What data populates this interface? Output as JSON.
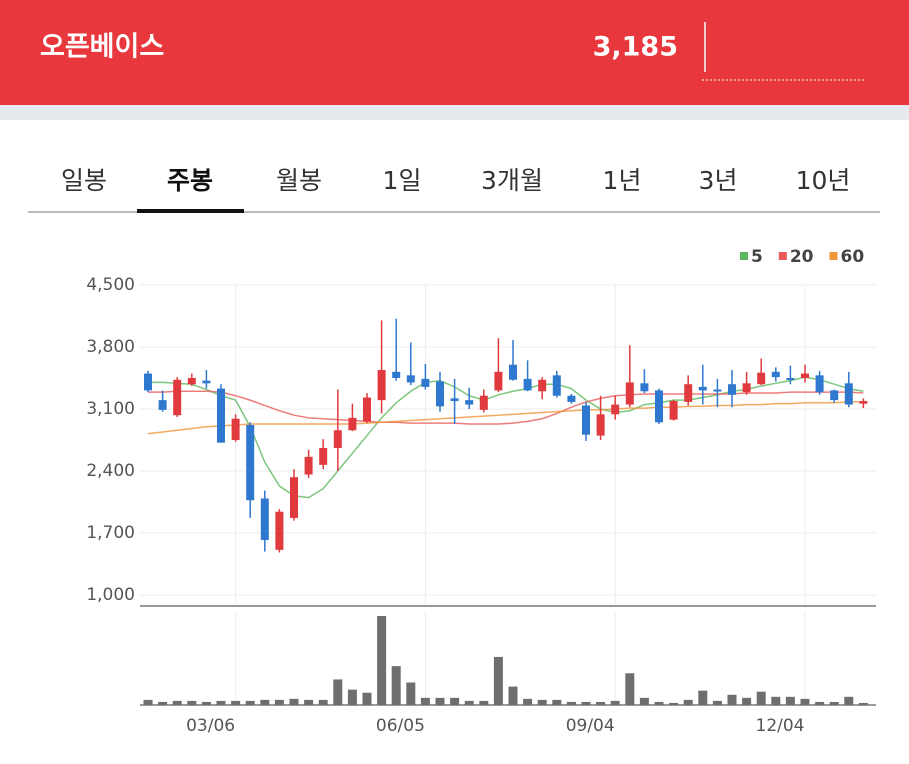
{
  "header": {
    "title": "오픈베이스",
    "price": "3,185"
  },
  "tabs": {
    "items": [
      "일봉",
      "주봉",
      "월봉",
      "1일",
      "3개월",
      "1년",
      "3년",
      "10년"
    ],
    "active": 1
  },
  "chart_data": {
    "type": "candlestick",
    "up_color": "#e03a3e",
    "down_color": "#2f78d0",
    "volume_color": "#6e6e6e",
    "categories": [
      null,
      null,
      null,
      null,
      null,
      null,
      "03/06",
      null,
      null,
      null,
      null,
      null,
      null,
      null,
      null,
      null,
      null,
      null,
      null,
      "06/05",
      null,
      null,
      null,
      null,
      null,
      null,
      null,
      null,
      null,
      null,
      null,
      null,
      "09/04",
      null,
      null,
      null,
      null,
      null,
      null,
      null,
      null,
      null,
      null,
      null,
      null,
      "12/04",
      null,
      null,
      null,
      null
    ],
    "open": [
      3500,
      3200,
      3030,
      3380,
      3420,
      3330,
      2750,
      2920,
      2090,
      1510,
      1870,
      2360,
      2470,
      2660,
      2860,
      2960,
      3200,
      3520,
      3480,
      3440,
      3410,
      3220,
      3200,
      3090,
      3310,
      3600,
      3440,
      3300,
      3480,
      3250,
      3140,
      2800,
      3040,
      3150,
      3390,
      3310,
      2980,
      3180,
      3350,
      3320,
      3380,
      3290,
      3380,
      3520,
      3450,
      3450,
      3480,
      3310,
      3390,
      3160
    ],
    "high": [
      3530,
      3310,
      3460,
      3500,
      3540,
      3380,
      3040,
      2950,
      2180,
      1970,
      2420,
      2640,
      2760,
      3320,
      3160,
      3280,
      4100,
      4120,
      3850,
      3610,
      3520,
      3440,
      3340,
      3320,
      3900,
      3880,
      3650,
      3460,
      3530,
      3270,
      3180,
      3250,
      3250,
      3820,
      3550,
      3330,
      3200,
      3480,
      3600,
      3440,
      3540,
      3520,
      3670,
      3570,
      3590,
      3600,
      3530,
      3320,
      3520,
      3220
    ],
    "low": [
      3290,
      3070,
      3010,
      3360,
      3330,
      2720,
      2730,
      1870,
      1490,
      1480,
      1840,
      2320,
      2420,
      2400,
      2850,
      2940,
      3050,
      3420,
      3370,
      3320,
      3070,
      2930,
      3100,
      3060,
      3290,
      3420,
      3300,
      3210,
      3230,
      3160,
      2740,
      2750,
      2980,
      3120,
      3280,
      2930,
      2970,
      3140,
      3150,
      3120,
      3120,
      3260,
      3370,
      3410,
      3380,
      3400,
      3260,
      3170,
      3120,
      3110
    ],
    "close": [
      3310,
      3090,
      3430,
      3450,
      3390,
      2720,
      2990,
      2070,
      1620,
      1940,
      2330,
      2560,
      2660,
      2860,
      3000,
      3230,
      3540,
      3450,
      3400,
      3350,
      3130,
      3190,
      3150,
      3250,
      3520,
      3430,
      3310,
      3430,
      3250,
      3180,
      2810,
      3040,
      3150,
      3400,
      3300,
      2950,
      3190,
      3380,
      3310,
      3300,
      3260,
      3390,
      3510,
      3460,
      3430,
      3500,
      3290,
      3200,
      3150,
      3190
    ],
    "volume": [
      5,
      3,
      4,
      4,
      3,
      4,
      4,
      4,
      5,
      5,
      6,
      5,
      5,
      25,
      15,
      12,
      87,
      38,
      22,
      7,
      7,
      7,
      4,
      4,
      47,
      18,
      6,
      5,
      5,
      3,
      3,
      3,
      4,
      31,
      7,
      3,
      2,
      5,
      14,
      4,
      10,
      7,
      13,
      8,
      8,
      6,
      3,
      3,
      8,
      2
    ],
    "series": [
      {
        "name": "5",
        "color": "#5cb85c",
        "values": [
          3400,
          3400,
          3390,
          3380,
          3320,
          3250,
          3200,
          2900,
          2500,
          2230,
          2120,
          2100,
          2200,
          2400,
          2600,
          2800,
          3000,
          3170,
          3300,
          3400,
          3420,
          3350,
          3250,
          3200,
          3260,
          3300,
          3330,
          3380,
          3380,
          3330,
          3200,
          3100,
          3060,
          3080,
          3150,
          3170,
          3200,
          3200,
          3230,
          3260,
          3300,
          3320,
          3360,
          3390,
          3420,
          3460,
          3430,
          3380,
          3330,
          3300
        ]
      },
      {
        "name": "20",
        "color": "#e95b5b",
        "values": [
          3290,
          3290,
          3300,
          3300,
          3300,
          3290,
          3250,
          3200,
          3140,
          3080,
          3030,
          3000,
          2990,
          2980,
          2970,
          2960,
          2950,
          2950,
          2940,
          2940,
          2940,
          2940,
          2930,
          2930,
          2930,
          2940,
          2960,
          2990,
          3050,
          3120,
          3180,
          3220,
          3250,
          3260,
          3270,
          3270,
          3270,
          3270,
          3270,
          3270,
          3270,
          3280,
          3280,
          3280,
          3290,
          3290,
          3290,
          3290,
          3290,
          3280
        ]
      },
      {
        "name": "60",
        "color": "#f0953a",
        "values": [
          2820,
          2840,
          2860,
          2880,
          2900,
          2910,
          2920,
          2930,
          2930,
          2930,
          2930,
          2930,
          2930,
          2930,
          2930,
          2940,
          2950,
          2960,
          2970,
          2980,
          2990,
          3000,
          3010,
          3020,
          3030,
          3040,
          3050,
          3060,
          3070,
          3080,
          3090,
          3090,
          3100,
          3110,
          3110,
          3120,
          3120,
          3130,
          3130,
          3140,
          3140,
          3150,
          3150,
          3160,
          3160,
          3170,
          3170,
          3170,
          3180,
          3180
        ]
      }
    ],
    "ylim": [
      1000,
      4500
    ],
    "yticks": [
      {
        "value": 1000,
        "label": "1,000"
      },
      {
        "value": 1700,
        "label": "1,700"
      },
      {
        "value": 2400,
        "label": "2,400"
      },
      {
        "value": 3100,
        "label": "3,100"
      },
      {
        "value": 3800,
        "label": "3,800"
      },
      {
        "value": 4500,
        "label": "4,500"
      }
    ],
    "grid": true
  }
}
